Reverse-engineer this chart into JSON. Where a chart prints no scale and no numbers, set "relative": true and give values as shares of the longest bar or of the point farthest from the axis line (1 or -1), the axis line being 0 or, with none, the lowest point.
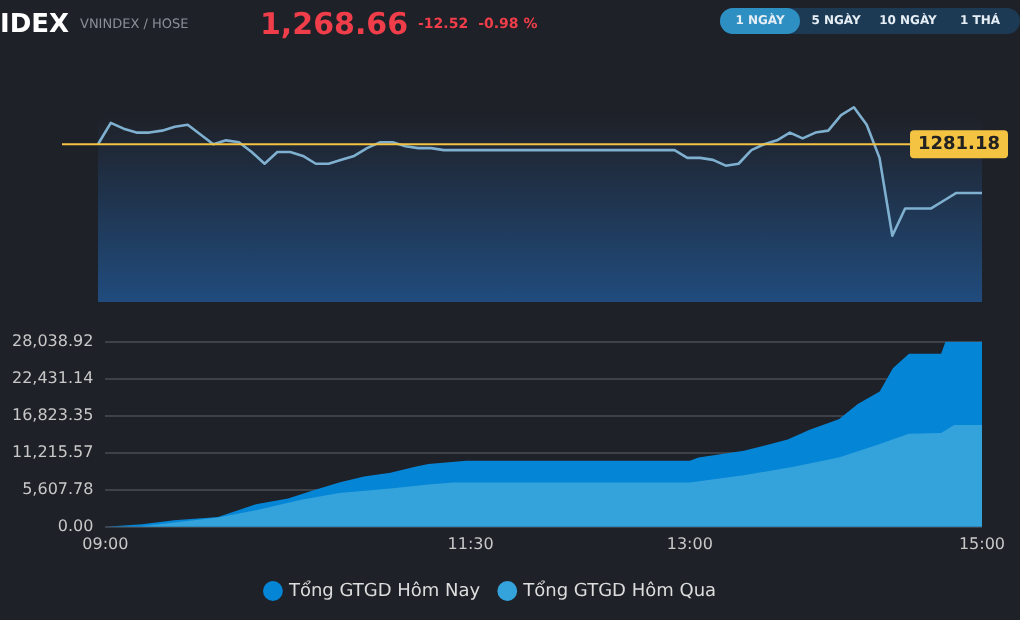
{
  "chart_data": [
    {
      "type": "line",
      "title": "IDEX",
      "subtitle": "VNINDEX / HOSE",
      "annotations": [
        "1,268.66",
        "-12.52",
        "-0.98 %",
        "1 NGÀY",
        "5 NGÀY",
        "10 NGÀY",
        "1 THÁ",
        "1281.18"
      ],
      "categories": [
        null,
        null,
        null,
        null,
        null,
        null,
        null,
        null,
        null,
        null,
        null,
        null,
        null,
        null,
        null,
        null,
        null,
        null,
        null,
        null,
        null,
        null,
        null,
        null,
        null,
        null,
        null,
        null,
        null,
        null,
        null,
        null,
        null,
        null,
        null,
        null,
        null,
        null,
        null,
        null,
        null,
        null,
        null,
        null,
        null,
        null,
        null,
        null,
        null,
        null,
        null,
        null,
        null,
        null,
        null,
        null,
        null,
        null,
        null,
        null,
        null,
        null,
        null,
        null,
        null,
        null,
        null,
        null,
        null,
        null
      ],
      "series": [
        {
          "color": "#7fb0d0",
          "values": [
            0.81,
            0.92,
            0.89,
            0.87,
            0.87,
            0.88,
            0.9,
            0.91,
            0.86,
            0.81,
            0.83,
            0.82,
            0.77,
            0.71,
            0.77,
            0.77,
            0.75,
            0.71,
            0.71,
            0.73,
            0.75,
            0.79,
            0.82,
            0.82,
            0.8,
            0.79,
            0.79,
            0.78,
            0.78,
            0.78,
            0.78,
            0.78,
            0.78,
            0.78,
            0.78,
            0.78,
            0.78,
            0.78,
            0.78,
            0.78,
            0.78,
            0.78,
            0.78,
            0.78,
            0.78,
            0.78,
            0.74,
            0.74,
            0.73,
            0.7,
            0.71,
            0.78,
            0.81,
            0.83,
            0.87,
            0.84,
            0.87,
            0.88,
            0.96,
            1.0,
            0.91,
            0.74,
            0.34,
            0.48,
            0.48,
            0.48,
            0.52,
            0.56,
            0.56,
            0.56
          ]
        }
      ],
      "relative": true,
      "ref_lines": [
        {
          "axis": "y",
          "value": 0.81,
          "color": "#f5c342"
        }
      ]
    },
    {
      "type": "area",
      "series": [
        {
          "name": "Tổng GTGD Hôm Nay",
          "color": "#0585d6",
          "x": [
            9.0,
            9.25,
            9.47,
            9.77,
            10.03,
            10.25,
            10.42,
            10.6,
            10.77,
            10.95,
            11.12,
            11.21,
            11.47,
            11.5,
            13.0,
            13.06,
            13.37,
            13.67,
            13.82,
            14.02,
            14.15,
            14.3,
            14.39,
            14.5,
            14.72,
            14.75,
            15.0
          ],
          "values": [
            0,
            400,
            1000,
            1500,
            3400,
            4300,
            5500,
            6700,
            7600,
            8200,
            9100,
            9500,
            10000,
            10000,
            10000,
            10500,
            11500,
            13200,
            14700,
            16300,
            18600,
            20500,
            24000,
            26200,
            26200,
            28000,
            28000
          ]
        },
        {
          "name": "Tổng GTGD Hôm Qua",
          "color": "#34a3dc",
          "x": [
            9.0,
            9.25,
            9.77,
            10.03,
            10.34,
            10.6,
            10.95,
            11.21,
            11.38,
            11.5,
            13.0,
            13.37,
            13.71,
            14.02,
            14.28,
            14.5,
            14.72,
            14.81,
            15.0
          ],
          "values": [
            0,
            100,
            1400,
            2500,
            4100,
            5100,
            5800,
            6400,
            6700,
            6700,
            6700,
            7800,
            9100,
            10500,
            12400,
            14100,
            14200,
            15400,
            15400
          ]
        }
      ],
      "xlim": [
        9,
        15
      ],
      "xticks": [
        {
          "value": 9,
          "label": "09:00"
        },
        {
          "value": 11.5,
          "label": "11:30"
        },
        {
          "value": 13,
          "label": "13:00"
        },
        {
          "value": 15,
          "label": "15:00"
        }
      ],
      "ylim": [
        0,
        28038.92
      ],
      "yticks": [
        {
          "value": 0,
          "label": "0.00"
        },
        {
          "value": 5607.78,
          "label": "5,607.78"
        },
        {
          "value": 11215.57,
          "label": "11,215.57"
        },
        {
          "value": 16823.35,
          "label": "16,823.35"
        },
        {
          "value": 22431.14,
          "label": "22,431.14"
        },
        {
          "value": 28038.92,
          "label": "28,038.92"
        }
      ],
      "grid": "y",
      "legend": "bottom"
    }
  ]
}
